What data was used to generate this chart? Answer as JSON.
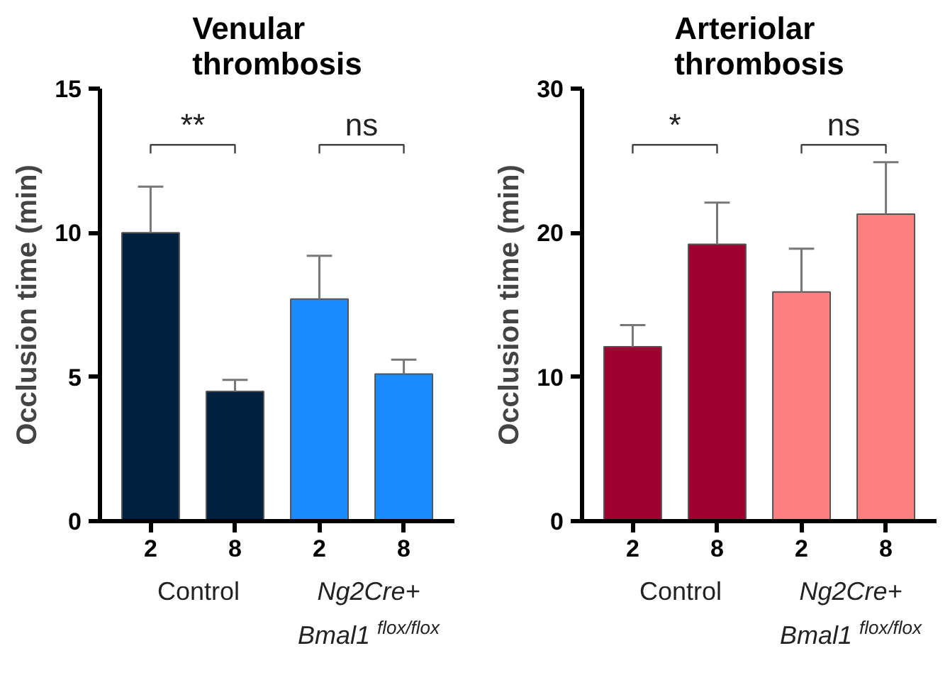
{
  "chart_data": [
    {
      "type": "bar",
      "title": "Venular\nthrombosis",
      "ylabel": "Occlusion time (min)",
      "categories": [
        "2",
        "8",
        "2",
        "8"
      ],
      "values": [
        10.0,
        4.5,
        7.7,
        5.1
      ],
      "colors": [
        "#00203f",
        "#00203f",
        "#1a8cff",
        "#1a8cff"
      ],
      "errors": [
        [
          10.0,
          11.6
        ],
        [
          4.5,
          4.9
        ],
        [
          7.7,
          9.2
        ],
        [
          5.1,
          5.6
        ]
      ],
      "ylim": [
        0,
        15
      ],
      "yticks": [
        0,
        5,
        10,
        15
      ],
      "grid": false,
      "annotations": [
        "**",
        "ns",
        "Control",
        "Ng2Cre+\nBmal1 $^{flox/flox}$"
      ]
    },
    {
      "type": "bar",
      "title": "Arteriolar\nthrombosis",
      "ylabel": "Occlusion time (min)",
      "categories": [
        "2",
        "8",
        "2",
        "8"
      ],
      "values": [
        12.1,
        19.2,
        15.9,
        21.3
      ],
      "colors": [
        "#a00030",
        "#a00030",
        "#ff8080",
        "#ff8080"
      ],
      "errors": [
        [
          12.1,
          13.6
        ],
        [
          19.2,
          22.1
        ],
        [
          15.9,
          18.9
        ],
        [
          21.3,
          24.9
        ]
      ],
      "ylim": [
        0,
        30
      ],
      "yticks": [
        0,
        10,
        20,
        30
      ],
      "grid": false,
      "annotations": [
        "*",
        "ns",
        "Control",
        "Ng2Cre+\nBmal1 $^{flox/flox}$"
      ]
    }
  ]
}
